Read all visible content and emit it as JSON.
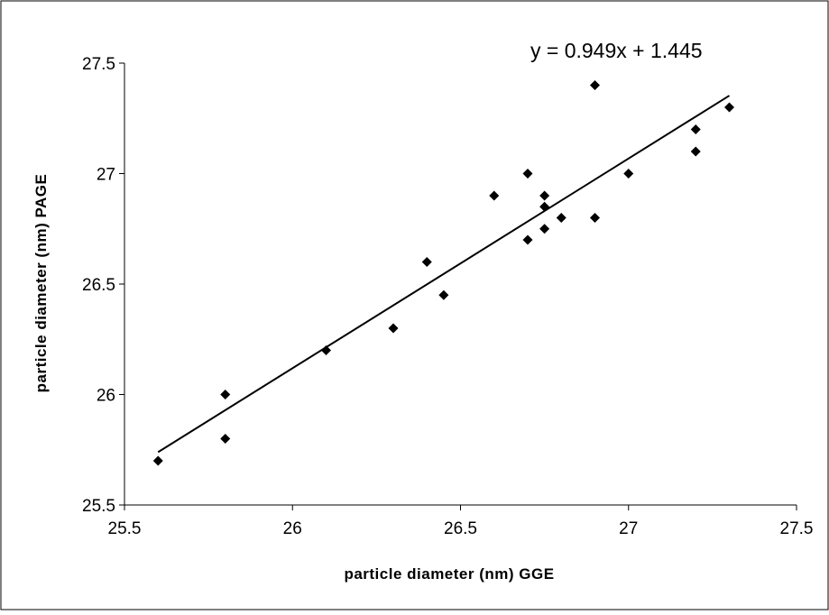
{
  "chart_data": {
    "type": "scatter",
    "title": "",
    "xlabel": "particle diameter (nm) GGE",
    "ylabel": "particle diameter (nm) PAGE",
    "xlim": [
      25.5,
      27.5
    ],
    "ylim": [
      25.5,
      27.5
    ],
    "xticks": [
      25.5,
      26,
      26.5,
      27,
      27.5
    ],
    "yticks": [
      25.5,
      26,
      26.5,
      27,
      27.5
    ],
    "xtick_labels": [
      "25.5",
      "26",
      "26.5",
      "27",
      "27.5"
    ],
    "ytick_labels": [
      "25.5",
      "26",
      "26.5",
      "27",
      "27.5"
    ],
    "grid": false,
    "legend": "none",
    "marker": "diamond",
    "marker_color": "#000000",
    "series": [
      {
        "x": [
          25.6,
          25.8,
          25.8,
          26.1,
          26.3,
          26.4,
          26.45,
          26.6,
          26.7,
          26.7,
          26.75,
          26.75,
          26.75,
          26.8,
          26.9,
          26.9,
          27.0,
          27.2,
          27.2,
          27.3
        ],
        "y": [
          25.7,
          26.0,
          25.8,
          26.2,
          26.3,
          26.6,
          26.45,
          26.9,
          27.0,
          26.7,
          26.9,
          26.85,
          26.75,
          26.8,
          27.4,
          26.8,
          27.0,
          27.2,
          27.1,
          27.3
        ]
      }
    ],
    "trendline": {
      "slope": 0.949,
      "intercept": 1.445,
      "x_range": [
        25.6,
        27.3
      ],
      "label": "y = 0.949x + 1.445"
    }
  }
}
